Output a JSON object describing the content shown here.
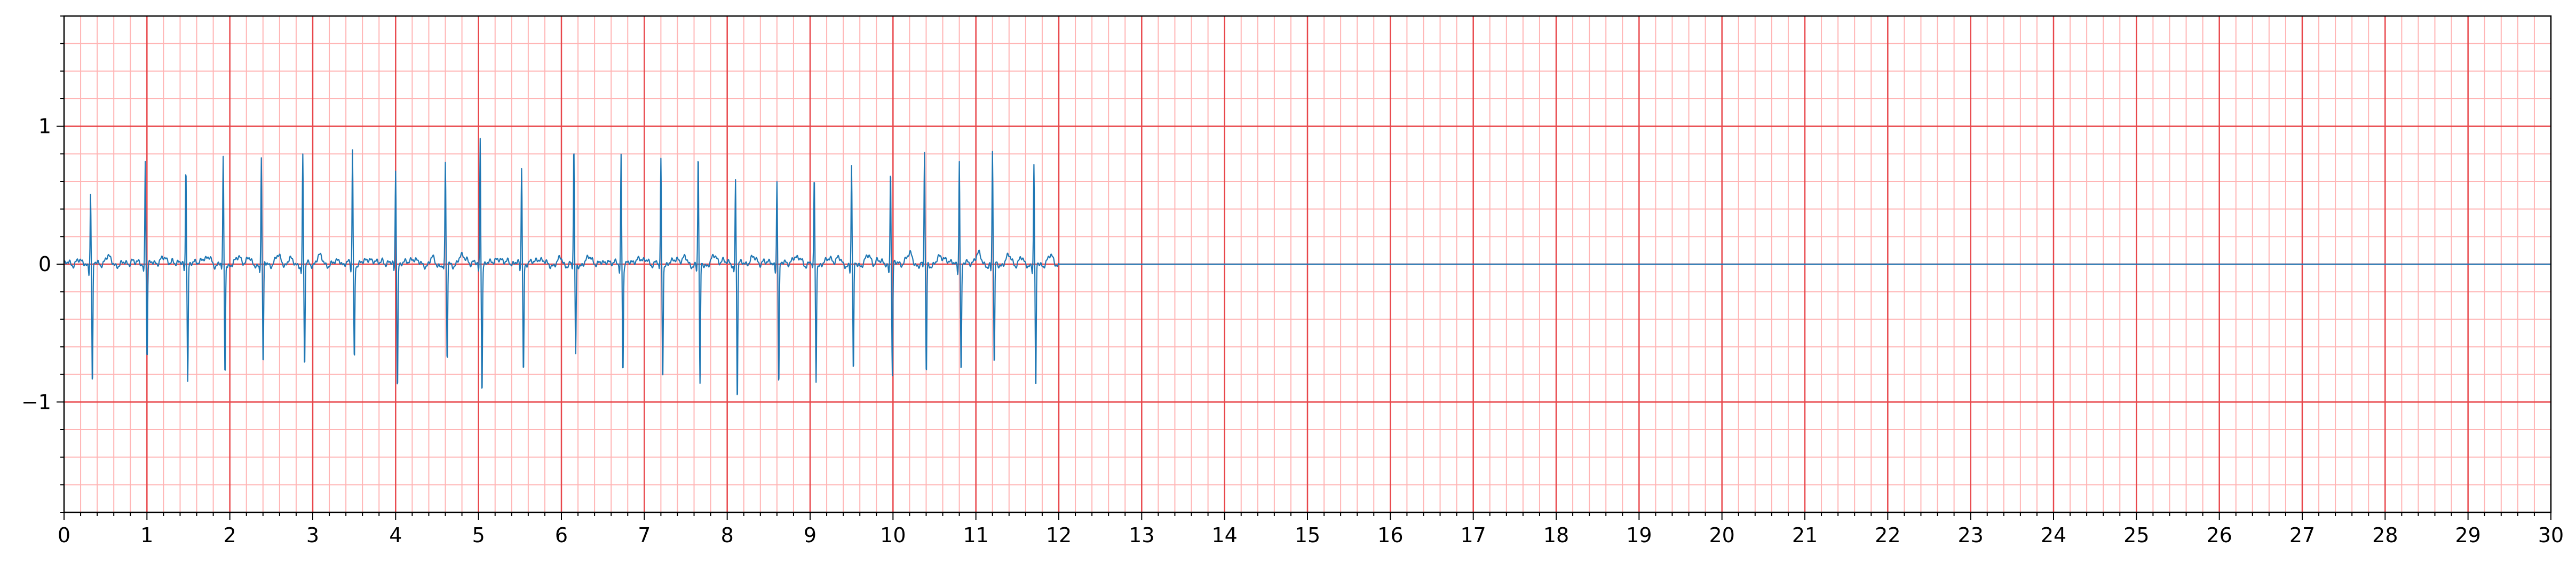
{
  "chart_data": {
    "type": "line",
    "title": "",
    "xlabel": "",
    "ylabel": "",
    "xlim": [
      0,
      30
    ],
    "ylim": [
      -1.8,
      1.8
    ],
    "x_ticks": [
      0,
      1,
      2,
      3,
      4,
      5,
      6,
      7,
      8,
      9,
      10,
      11,
      12,
      13,
      14,
      15,
      16,
      17,
      18,
      19,
      20,
      21,
      22,
      23,
      24,
      25,
      26,
      27,
      28,
      29,
      30
    ],
    "x_tick_labels": [
      "0",
      "1",
      "2",
      "3",
      "4",
      "5",
      "6",
      "7",
      "8",
      "9",
      "10",
      "11",
      "12",
      "13",
      "14",
      "15",
      "16",
      "17",
      "18",
      "19",
      "20",
      "21",
      "22",
      "23",
      "24",
      "25",
      "26",
      "27",
      "28",
      "29",
      "30"
    ],
    "x_minor_step": 0.2,
    "y_ticks": [
      -1,
      0,
      1
    ],
    "y_tick_labels": [
      "−1",
      "0",
      "1"
    ],
    "y_minor_step": 0.2,
    "grid": {
      "major": true,
      "minor": true,
      "major_color": "#e8474b",
      "minor_color": "#ffb5b5"
    },
    "legend": "none",
    "series": [
      {
        "color": "#1f77b4",
        "baseline": 0.0,
        "signal_end": 12.0,
        "beats": [
          {
            "t": 0.32,
            "r": 0.52,
            "s": -0.9
          },
          {
            "t": 0.98,
            "r": 0.77,
            "s": -0.68
          },
          {
            "t": 1.47,
            "r": 0.73,
            "s": -0.84
          },
          {
            "t": 1.92,
            "r": 0.75,
            "s": -0.81
          },
          {
            "t": 2.38,
            "r": 0.77,
            "s": -0.76
          },
          {
            "t": 2.88,
            "r": 0.78,
            "s": -0.76
          },
          {
            "t": 3.48,
            "r": 0.84,
            "s": -0.7
          },
          {
            "t": 4.0,
            "r": 0.69,
            "s": -0.9
          },
          {
            "t": 4.6,
            "r": 0.72,
            "s": -0.72
          },
          {
            "t": 5.02,
            "r": 0.92,
            "s": -0.93
          },
          {
            "t": 5.52,
            "r": 0.72,
            "s": -0.79
          },
          {
            "t": 6.15,
            "r": 0.85,
            "s": -0.66
          },
          {
            "t": 6.72,
            "r": 0.8,
            "s": -0.78
          },
          {
            "t": 7.2,
            "r": 0.76,
            "s": -0.82
          },
          {
            "t": 7.65,
            "r": 0.8,
            "s": -0.9
          },
          {
            "t": 8.1,
            "r": 0.62,
            "s": -0.98
          },
          {
            "t": 8.6,
            "r": 0.62,
            "s": -0.88
          },
          {
            "t": 9.05,
            "r": 0.63,
            "s": -0.84
          },
          {
            "t": 9.5,
            "r": 0.71,
            "s": -0.82
          },
          {
            "t": 9.97,
            "r": 0.72,
            "s": -0.82
          },
          {
            "t": 10.38,
            "r": 0.81,
            "s": -0.82
          },
          {
            "t": 10.8,
            "r": 0.77,
            "s": -0.8
          },
          {
            "t": 11.2,
            "r": 0.81,
            "s": -0.76
          },
          {
            "t": 11.7,
            "r": 0.72,
            "s": -0.96
          }
        ]
      }
    ]
  },
  "colors": {
    "line": "#1f77b4",
    "grid_major": "#e8474b",
    "grid_minor": "#ffb5b5",
    "axis": "#000000",
    "background": "#ffffff"
  }
}
